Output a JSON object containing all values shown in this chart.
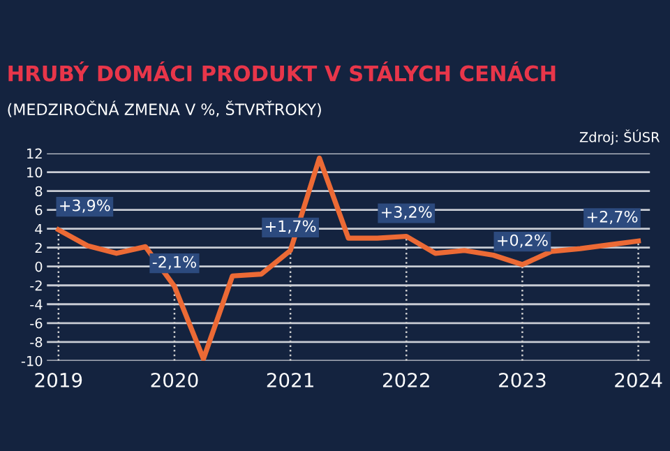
{
  "chart_data": {
    "type": "line",
    "title": "HRUBÝ DOMÁCI PRODUKT V STÁLYCH CENÁCH",
    "subtitle": "(MEDZIROČNÁ ZMENA V %, ŠTVRŤROKY)",
    "x": [
      2019,
      2019.25,
      2019.5,
      2019.75,
      2020,
      2020.25,
      2020.5,
      2020.75,
      2021,
      2021.25,
      2021.5,
      2021.75,
      2022,
      2022.25,
      2022.5,
      2022.75,
      2023,
      2023.25,
      2023.5,
      2023.75,
      2024
    ],
    "series": [
      {
        "color": "#ec6a35",
        "values": [
          3.9,
          2.2,
          1.4,
          2.1,
          -2.1,
          -9.8,
          -1.0,
          -0.8,
          1.7,
          11.5,
          3.0,
          3.0,
          3.2,
          1.4,
          1.7,
          1.2,
          0.2,
          1.6,
          1.9,
          2.3,
          2.7
        ]
      }
    ],
    "xlim": [
      2018.9,
      2024.1
    ],
    "ylim": [
      -10,
      12
    ],
    "xticks": [
      2019,
      2020,
      2021,
      2022,
      2023,
      2024
    ],
    "yticks": [
      -10,
      -8,
      -6,
      -4,
      -2,
      0,
      2,
      4,
      6,
      8,
      10,
      12
    ],
    "grid": "y",
    "marker": "none",
    "line_style": "solid",
    "annotations": [
      {
        "text": "+3,9%",
        "x": 2019,
        "y": 3.9
      },
      {
        "text": "-2,1%",
        "x": 2020,
        "y": -2.1
      },
      {
        "text": "+1,7%",
        "x": 2021,
        "y": 1.7
      },
      {
        "text": "+3,2%",
        "x": 2022,
        "y": 3.2
      },
      {
        "text": "+0,2%",
        "x": 2023,
        "y": 0.2
      },
      {
        "text": "+2,7%",
        "x": 2024,
        "y": 2.7
      },
      "Zdroj: ŠÚSR"
    ]
  }
}
